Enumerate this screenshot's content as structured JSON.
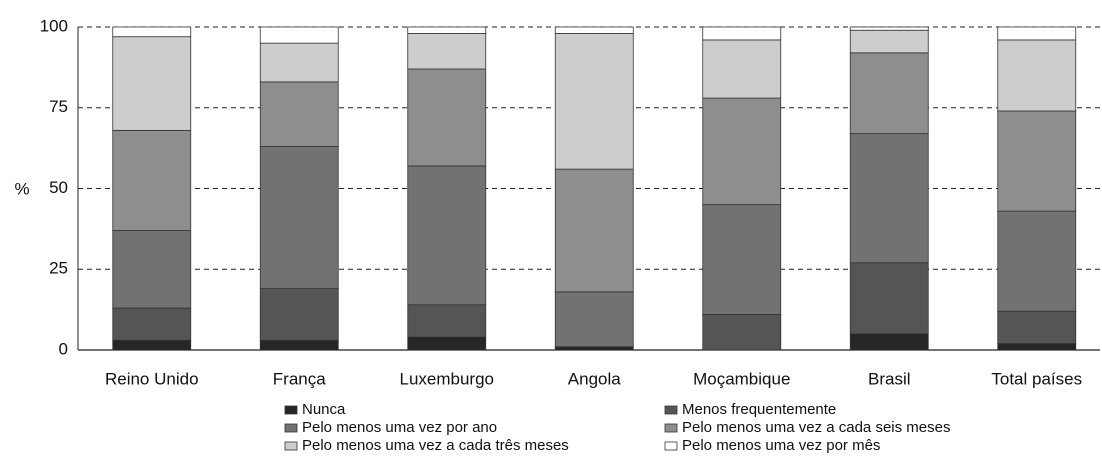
{
  "chart_data": {
    "type": "stacked_bar",
    "y_label": "%",
    "categories": [
      "Reino Unido",
      "França",
      "Luxemburgo",
      "Angola",
      "Moçambique",
      "Brasil",
      "Total países"
    ],
    "series": [
      {
        "name": "Nunca",
        "color": "#262626",
        "values": [
          3,
          3,
          4,
          1,
          0,
          5,
          2
        ]
      },
      {
        "name": "Menos frequentemente",
        "color": "#555555",
        "values": [
          10,
          16,
          10,
          0,
          11,
          22,
          10
        ]
      },
      {
        "name": "Pelo menos uma vez por ano",
        "color": "#727272",
        "values": [
          24,
          44,
          43,
          17,
          34,
          40,
          31
        ]
      },
      {
        "name": "Pelo menos uma vez a cada seis meses",
        "color": "#8e8e8e",
        "values": [
          31,
          20,
          30,
          38,
          33,
          25,
          31
        ]
      },
      {
        "name": "Pelo menos uma vez a cada três meses",
        "color": "#cdcdcd",
        "values": [
          29,
          12,
          11,
          42,
          18,
          7,
          22
        ]
      },
      {
        "name": "Pelo menos uma vez por mês",
        "color": "#ffffff",
        "values": [
          3,
          5,
          2,
          2,
          4,
          1,
          4
        ]
      }
    ],
    "ylim": [
      0,
      100
    ],
    "yticks": [
      0,
      25,
      50,
      75,
      100
    ],
    "grid": true
  }
}
